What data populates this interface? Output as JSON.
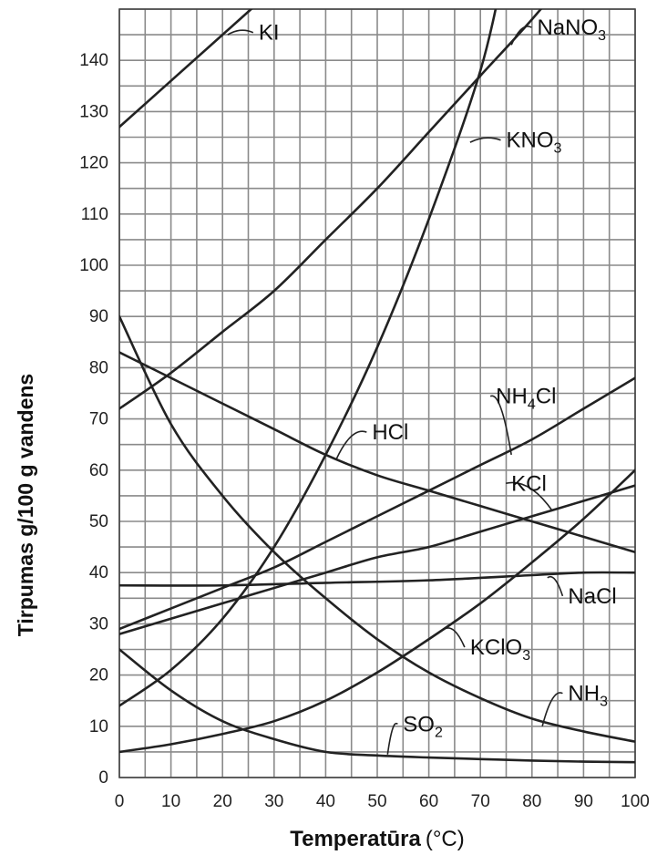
{
  "chart_data": {
    "type": "line",
    "title": "",
    "xlabel": "Temperatūra",
    "xlabel_unit": "(°C)",
    "ylabel": "Tirpumas g/100 g vandens",
    "xlim": [
      0,
      100
    ],
    "ylim": [
      0,
      150
    ],
    "x_ticks": [
      "0",
      "10",
      "20",
      "30",
      "40",
      "50",
      "60",
      "70",
      "80",
      "90",
      "100"
    ],
    "y_ticks": [
      "0",
      "10",
      "20",
      "30",
      "40",
      "50",
      "60",
      "70",
      "80",
      "90",
      "100",
      "110",
      "120",
      "130",
      "140"
    ],
    "grid": true,
    "series": [
      {
        "name": "KI",
        "x": [
          0,
          10,
          20,
          30
        ],
        "y": [
          127,
          136,
          145,
          154
        ]
      },
      {
        "name": "NaNO3",
        "x": [
          0,
          10,
          20,
          30,
          40,
          50,
          60,
          70,
          80,
          90
        ],
        "y": [
          72,
          79,
          87,
          95,
          105,
          115,
          126,
          137,
          148,
          160
        ]
      },
      {
        "name": "KNO3",
        "x": [
          0,
          10,
          20,
          30,
          40,
          50,
          60,
          70,
          75
        ],
        "y": [
          14,
          21,
          31,
          45,
          63,
          84,
          109,
          138,
          160
        ]
      },
      {
        "name": "NH4Cl",
        "x": [
          0,
          10,
          20,
          30,
          40,
          50,
          60,
          70,
          80,
          90,
          100
        ],
        "y": [
          29,
          33,
          37,
          41,
          46,
          51,
          56,
          61,
          66,
          72,
          78
        ]
      },
      {
        "name": "HCl",
        "x": [
          0,
          10,
          20,
          30,
          40,
          50,
          60,
          70,
          80,
          90,
          100
        ],
        "y": [
          83,
          78,
          73,
          68,
          63,
          59,
          56,
          53,
          50,
          47,
          44
        ]
      },
      {
        "name": "KCl",
        "x": [
          0,
          10,
          20,
          30,
          40,
          50,
          60,
          70,
          80,
          90,
          100
        ],
        "y": [
          28,
          31,
          34,
          37,
          40,
          43,
          45,
          48,
          51,
          54,
          57
        ]
      },
      {
        "name": "NaCl",
        "x": [
          0,
          20,
          40,
          60,
          80,
          90,
          100
        ],
        "y": [
          37.5,
          37.5,
          38,
          38.5,
          39.5,
          40,
          40
        ]
      },
      {
        "name": "KClO3",
        "x": [
          0,
          10,
          20,
          30,
          40,
          50,
          60,
          70,
          80,
          90,
          100
        ],
        "y": [
          5,
          6.5,
          8.5,
          11,
          15,
          20.5,
          27,
          34,
          42,
          50.5,
          60
        ]
      },
      {
        "name": "NH3",
        "x": [
          0,
          10,
          20,
          30,
          40,
          50,
          60,
          70,
          80,
          90,
          100
        ],
        "y": [
          90,
          69,
          55,
          44,
          35,
          27,
          20.5,
          15.5,
          11.5,
          9,
          7
        ]
      },
      {
        "name": "SO2",
        "x": [
          0,
          10,
          20,
          30,
          40,
          50,
          60,
          70,
          80,
          90,
          100
        ],
        "y": [
          25,
          17,
          11,
          7.5,
          5,
          4.3,
          3.9,
          3.6,
          3.3,
          3.1,
          3
        ]
      }
    ],
    "labels": [
      {
        "series": "KI",
        "parts": [
          {
            "t": "KI"
          }
        ],
        "label_x": 27,
        "label_y": 144,
        "anchor_x": 21,
        "anchor_y": 145
      },
      {
        "series": "NaNO3",
        "parts": [
          {
            "t": "NaNO"
          },
          {
            "t": "3",
            "sub": true
          }
        ],
        "label_x": 81,
        "label_y": 145,
        "anchor_x": 76,
        "anchor_y": 143
      },
      {
        "series": "KNO3",
        "parts": [
          {
            "t": "KNO"
          },
          {
            "t": "3",
            "sub": true
          }
        ],
        "label_x": 75,
        "label_y": 123,
        "anchor_x": 68,
        "anchor_y": 124
      },
      {
        "series": "NH4Cl",
        "parts": [
          {
            "t": "NH"
          },
          {
            "t": "4",
            "sub": true
          },
          {
            "t": "Cl"
          }
        ],
        "label_x": 73,
        "label_y": 73,
        "anchor_x": 76,
        "anchor_y": 63
      },
      {
        "series": "HCl",
        "parts": [
          {
            "t": "HCl"
          }
        ],
        "label_x": 49,
        "label_y": 66,
        "anchor_x": 42,
        "anchor_y": 62
      },
      {
        "series": "KCl",
        "parts": [
          {
            "t": "KCl"
          }
        ],
        "label_x": 76,
        "label_y": 56,
        "anchor_x": 84,
        "anchor_y": 52
      },
      {
        "series": "NaCl",
        "parts": [
          {
            "t": "NaCl"
          }
        ],
        "label_x": 87,
        "label_y": 34,
        "anchor_x": 83,
        "anchor_y": 39
      },
      {
        "series": "KClO3",
        "parts": [
          {
            "t": "KClO"
          },
          {
            "t": "3",
            "sub": true
          }
        ],
        "label_x": 68,
        "label_y": 24,
        "anchor_x": 63,
        "anchor_y": 29
      },
      {
        "series": "NH3",
        "parts": [
          {
            "t": "NH"
          },
          {
            "t": "3",
            "sub": true
          }
        ],
        "label_x": 87,
        "label_y": 15,
        "anchor_x": 82,
        "anchor_y": 10
      },
      {
        "series": "SO2",
        "parts": [
          {
            "t": "SO"
          },
          {
            "t": "2",
            "sub": true
          }
        ],
        "label_x": 55,
        "label_y": 9,
        "anchor_x": 52,
        "anchor_y": 4.5
      }
    ]
  }
}
